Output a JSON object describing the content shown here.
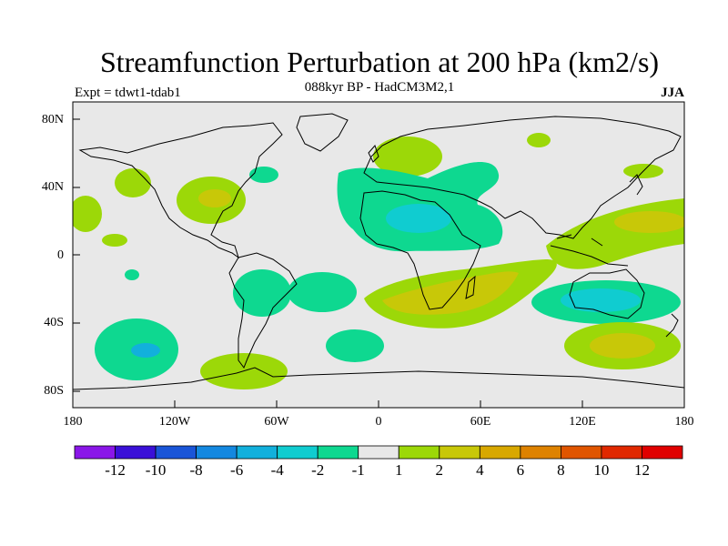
{
  "header": {
    "title": "Streamfunction Perturbation at 200 hPa (km2/s)",
    "subtitle": "088kyr BP - HadCM3M2,1",
    "left_label": "Expt = tdwt1-tdab1",
    "right_label": "JJA"
  },
  "axes": {
    "lat_ticks": [
      "80N",
      "40N",
      "0",
      "40S",
      "80S"
    ],
    "lon_ticks": [
      "180",
      "120W",
      "60W",
      "0",
      "60E",
      "120E",
      "180"
    ]
  },
  "colorbar": {
    "labels": [
      "-12",
      "-10",
      "-8",
      "-6",
      "-4",
      "-2",
      "-1",
      "1",
      "2",
      "4",
      "6",
      "8",
      "10",
      "12"
    ],
    "colors": [
      "#8a16e8",
      "#3a10d8",
      "#1a55d8",
      "#1488e0",
      "#12b0dc",
      "#10ccd0",
      "#0ed890",
      "#e8e8e8",
      "#9cd808",
      "#c8c808",
      "#d8a800",
      "#de8200",
      "#e05500",
      "#e02800",
      "#e00000"
    ]
  },
  "fill_colors": {
    "background": "#e8e8e8",
    "pos1": "#9cd808",
    "pos2": "#c8c808",
    "neg1": "#0ed890",
    "neg2": "#10ccd0",
    "neg3": "#12b0dc"
  }
}
